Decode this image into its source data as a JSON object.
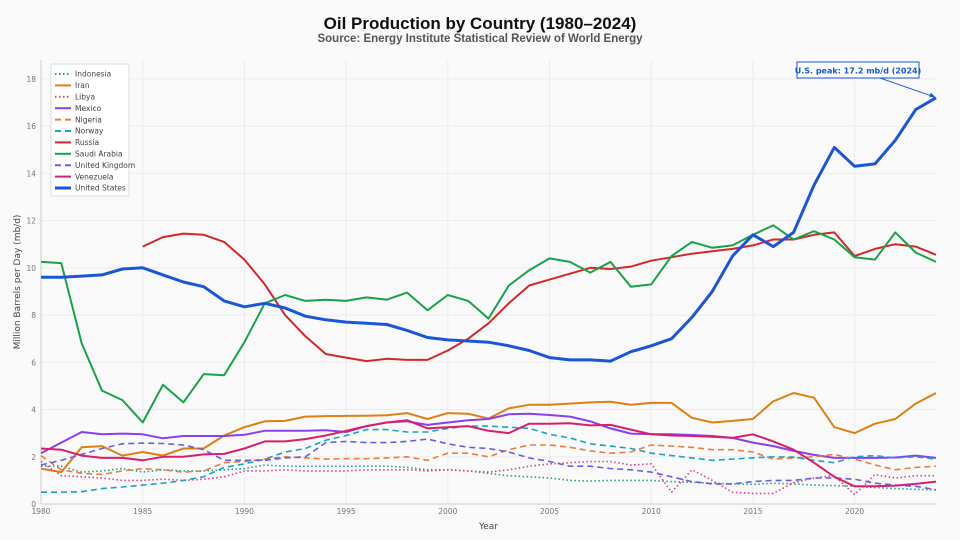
{
  "chart_data": {
    "type": "line",
    "title": "Oil Production by Country (1980–2024)",
    "subtitle": "Source: Energy Institute Statistical Review of World Energy",
    "xlabel": "Year",
    "ylabel": "Million Barrels per Day (mb/d)",
    "xlim": [
      1980,
      2024
    ],
    "ylim": [
      0,
      18.8
    ],
    "xticks": [
      1980,
      1985,
      1990,
      1995,
      2000,
      2005,
      2010,
      2015,
      2020
    ],
    "yticks": [
      0,
      2,
      4,
      6,
      8,
      10,
      12,
      14,
      16,
      18
    ],
    "grid": true,
    "legend_position": "top-left",
    "annotation": {
      "text": "U.S. peak: 17.2 mb/d (2024)",
      "x": 2024,
      "y": 17.2
    },
    "x_start": 1980,
    "series": [
      {
        "name": "Indonesia",
        "color": "#17a589",
        "dash": "dot",
        "values": [
          1.6,
          1.6,
          1.35,
          1.4,
          1.5,
          1.35,
          1.45,
          1.4,
          1.4,
          1.45,
          1.5,
          1.65,
          1.6,
          1.6,
          1.6,
          1.6,
          1.6,
          1.6,
          1.55,
          1.45,
          1.45,
          1.4,
          1.3,
          1.2,
          1.15,
          1.1,
          1.0,
          0.97,
          1.0,
          1.0,
          1.0,
          0.95,
          0.92,
          0.88,
          0.85,
          0.83,
          0.88,
          0.85,
          0.8,
          0.78,
          0.75,
          0.7,
          0.65,
          0.62,
          0.6
        ]
      },
      {
        "name": "Iran",
        "color": "#e07f12",
        "dash": "solid",
        "values": [
          1.5,
          1.35,
          2.4,
          2.45,
          2.05,
          2.2,
          2.05,
          2.35,
          2.35,
          2.9,
          3.25,
          3.5,
          3.52,
          3.7,
          3.72,
          3.73,
          3.74,
          3.76,
          3.85,
          3.6,
          3.85,
          3.82,
          3.62,
          4.05,
          4.2,
          4.2,
          4.25,
          4.3,
          4.33,
          4.2,
          4.28,
          4.28,
          3.65,
          3.45,
          3.52,
          3.6,
          4.35,
          4.7,
          4.5,
          3.25,
          3.0,
          3.4,
          3.6,
          4.25,
          4.7
        ]
      },
      {
        "name": "Libya",
        "color": "#e8388a",
        "dash": "dot",
        "values": [
          1.8,
          1.2,
          1.15,
          1.1,
          1.0,
          1.0,
          1.05,
          1.0,
          1.05,
          1.15,
          1.4,
          1.4,
          1.45,
          1.4,
          1.4,
          1.4,
          1.45,
          1.45,
          1.45,
          1.4,
          1.45,
          1.4,
          1.35,
          1.45,
          1.6,
          1.7,
          1.75,
          1.8,
          1.8,
          1.65,
          1.7,
          0.5,
          1.45,
          1.0,
          0.5,
          0.45,
          0.45,
          0.9,
          1.1,
          1.2,
          0.4,
          1.25,
          1.1,
          1.2,
          1.2
        ]
      },
      {
        "name": "Mexico",
        "color": "#8a3ff0",
        "dash": "solid",
        "values": [
          2.15,
          2.6,
          3.05,
          2.95,
          2.98,
          2.95,
          2.78,
          2.88,
          2.88,
          2.88,
          2.93,
          3.1,
          3.1,
          3.1,
          3.12,
          3.05,
          3.3,
          3.45,
          3.5,
          3.35,
          3.45,
          3.55,
          3.6,
          3.8,
          3.82,
          3.77,
          3.7,
          3.5,
          3.2,
          2.98,
          2.96,
          2.95,
          2.92,
          2.88,
          2.8,
          2.6,
          2.45,
          2.25,
          2.08,
          1.95,
          1.95,
          1.95,
          1.97,
          2.05,
          1.95
        ]
      },
      {
        "name": "Nigeria",
        "color": "#f07a3a",
        "dash": "dash",
        "values": [
          2.05,
          1.45,
          1.3,
          1.25,
          1.4,
          1.5,
          1.45,
          1.35,
          1.4,
          1.75,
          1.8,
          1.9,
          2.0,
          1.95,
          1.9,
          1.92,
          1.92,
          1.95,
          2.0,
          1.85,
          2.15,
          2.15,
          2.0,
          2.3,
          2.5,
          2.5,
          2.4,
          2.25,
          2.15,
          2.2,
          2.5,
          2.45,
          2.4,
          2.3,
          2.3,
          2.2,
          1.9,
          1.95,
          2.0,
          2.1,
          1.9,
          1.65,
          1.45,
          1.55,
          1.6
        ]
      },
      {
        "name": "Norway",
        "color": "#1aa3c6",
        "dash": "dash",
        "values": [
          0.5,
          0.5,
          0.52,
          0.65,
          0.72,
          0.8,
          0.88,
          1.0,
          1.15,
          1.55,
          1.7,
          1.9,
          2.2,
          2.35,
          2.7,
          2.9,
          3.15,
          3.15,
          3.05,
          3.05,
          3.2,
          3.3,
          3.3,
          3.25,
          3.2,
          2.95,
          2.8,
          2.55,
          2.45,
          2.35,
          2.15,
          2.05,
          1.95,
          1.85,
          1.9,
          1.95,
          2.0,
          1.98,
          1.85,
          1.75,
          2.0,
          2.05,
          1.95,
          2.0,
          1.9
        ]
      },
      {
        "name": "Russia",
        "color": "#d62728",
        "dash": "solid",
        "values": [
          null,
          null,
          null,
          null,
          null,
          10.9,
          11.3,
          11.45,
          11.4,
          11.1,
          10.35,
          9.3,
          8.0,
          7.1,
          6.35,
          6.2,
          6.05,
          6.15,
          6.1,
          6.1,
          6.5,
          7.0,
          7.65,
          8.5,
          9.25,
          9.5,
          9.75,
          10.0,
          9.95,
          10.05,
          10.3,
          10.45,
          10.6,
          10.7,
          10.8,
          10.95,
          11.2,
          11.2,
          11.4,
          11.5,
          10.5,
          10.8,
          11.0,
          10.9,
          10.55
        ]
      },
      {
        "name": "Saudi Arabia",
        "color": "#16a34a",
        "dash": "solid",
        "values": [
          10.25,
          10.2,
          6.8,
          4.8,
          4.4,
          3.45,
          5.05,
          4.3,
          5.5,
          5.45,
          6.85,
          8.5,
          8.85,
          8.6,
          8.65,
          8.6,
          8.75,
          8.65,
          8.95,
          8.2,
          8.85,
          8.6,
          7.85,
          9.25,
          9.9,
          10.4,
          10.25,
          9.8,
          10.25,
          9.2,
          9.3,
          10.5,
          11.1,
          10.85,
          10.95,
          11.4,
          11.8,
          11.2,
          11.55,
          11.2,
          10.45,
          10.35,
          11.5,
          10.65,
          10.25
        ]
      },
      {
        "name": "United Kingdom",
        "color": "#6c5ce7",
        "dash": "dash",
        "values": [
          1.65,
          1.85,
          2.1,
          2.35,
          2.55,
          2.58,
          2.56,
          2.5,
          2.3,
          1.85,
          1.85,
          1.85,
          1.95,
          2.0,
          2.6,
          2.65,
          2.6,
          2.6,
          2.65,
          2.75,
          2.55,
          2.4,
          2.35,
          2.2,
          1.95,
          1.8,
          1.6,
          1.6,
          1.5,
          1.45,
          1.35,
          1.15,
          0.95,
          0.85,
          0.85,
          0.95,
          1.0,
          1.0,
          1.1,
          1.1,
          1.05,
          0.88,
          0.8,
          0.75,
          0.6
        ]
      },
      {
        "name": "Venezuela",
        "color": "#db1f6a",
        "dash": "solid",
        "values": [
          2.35,
          2.3,
          2.05,
          1.95,
          1.95,
          1.85,
          2.0,
          2.0,
          2.1,
          2.12,
          2.35,
          2.65,
          2.65,
          2.75,
          2.9,
          3.1,
          3.3,
          3.45,
          3.55,
          3.2,
          3.25,
          3.3,
          3.1,
          3.0,
          3.4,
          3.4,
          3.42,
          3.33,
          3.35,
          3.15,
          2.95,
          2.9,
          2.88,
          2.85,
          2.8,
          2.95,
          2.65,
          2.3,
          1.75,
          1.15,
          0.75,
          0.75,
          0.78,
          0.85,
          0.95
        ]
      },
      {
        "name": "United States",
        "color": "#1a56db",
        "dash": "solid",
        "values": [
          9.6,
          9.6,
          9.65,
          9.7,
          9.95,
          10.0,
          9.7,
          9.4,
          9.2,
          8.6,
          8.35,
          8.5,
          8.3,
          7.95,
          7.8,
          7.7,
          7.65,
          7.6,
          7.35,
          7.05,
          6.95,
          6.9,
          6.85,
          6.7,
          6.5,
          6.2,
          6.1,
          6.1,
          6.05,
          6.45,
          6.7,
          7.0,
          7.9,
          9.0,
          10.5,
          11.4,
          10.9,
          11.5,
          13.5,
          15.1,
          14.3,
          14.4,
          15.4,
          16.7,
          17.2
        ]
      }
    ]
  }
}
